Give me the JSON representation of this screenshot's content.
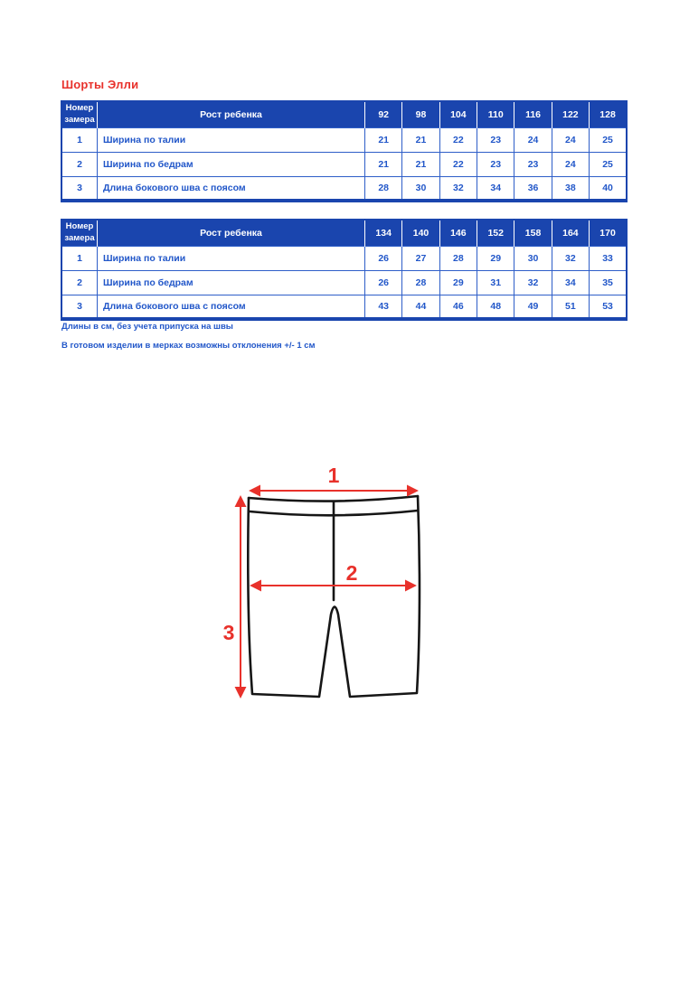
{
  "title": "Шорты Элли",
  "tables": [
    {
      "col1_header": "Номер замера",
      "col2_header": "Рост ребенка",
      "sizes": [
        "92",
        "98",
        "104",
        "110",
        "116",
        "122",
        "128"
      ],
      "rows": [
        {
          "num": "1",
          "label": "Ширина по талии",
          "values": [
            "21",
            "21",
            "22",
            "23",
            "24",
            "24",
            "25"
          ]
        },
        {
          "num": "2",
          "label": "Ширина по бедрам",
          "values": [
            "21",
            "21",
            "22",
            "23",
            "23",
            "24",
            "25"
          ]
        },
        {
          "num": "3",
          "label": "Длина бокового шва с поясом",
          "values": [
            "28",
            "30",
            "32",
            "34",
            "36",
            "38",
            "40"
          ]
        }
      ]
    },
    {
      "col1_header": "Номер замера",
      "col2_header": "Рост ребенка",
      "sizes": [
        "134",
        "140",
        "146",
        "152",
        "158",
        "164",
        "170"
      ],
      "rows": [
        {
          "num": "1",
          "label": "Ширина по талии",
          "values": [
            "26",
            "27",
            "28",
            "29",
            "30",
            "32",
            "33"
          ]
        },
        {
          "num": "2",
          "label": "Ширина по бедрам",
          "values": [
            "26",
            "28",
            "29",
            "31",
            "32",
            "34",
            "35"
          ]
        },
        {
          "num": "3",
          "label": "Длина бокового шва с поясом",
          "values": [
            "43",
            "44",
            "46",
            "48",
            "49",
            "51",
            "53"
          ]
        }
      ]
    }
  ],
  "notes": [
    "Длины в см, без учета припуска на швы",
    "В готовом изделии в мерках возможны отклонения +/- 1 см"
  ],
  "diagram": {
    "labels": {
      "width_waist": "1",
      "width_hip": "2",
      "side_length": "3"
    }
  },
  "colors": {
    "header_blue": "#1a45ae",
    "cell_blue": "#2257c9",
    "grid_blue": "#2e5ec8",
    "red": "#e8312b",
    "outline": "#161616"
  }
}
